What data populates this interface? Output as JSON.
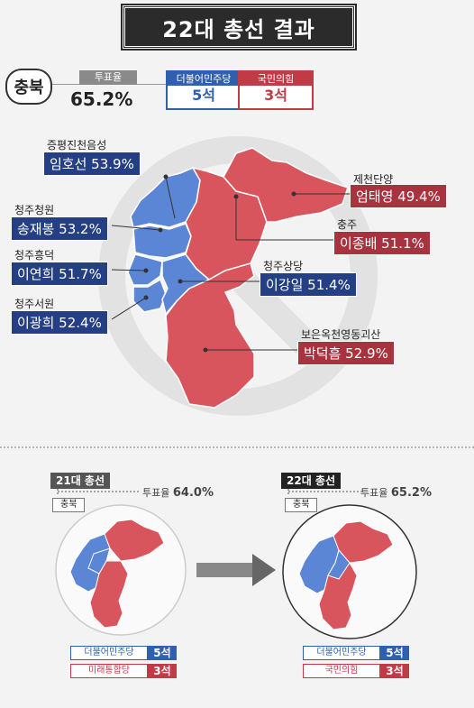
{
  "title": "22대 총선 결과",
  "region": "충북",
  "turnout_label": "투표율",
  "turnout_value": "65.2%",
  "parties": [
    {
      "name": "더불어민주당",
      "seats": "5석",
      "color": "#2f5fae"
    },
    {
      "name": "국민의힘",
      "seats": "3석",
      "color": "#c23a45"
    }
  ],
  "districts": [
    {
      "name": "증평진천음성",
      "winner": "임호선 53.9%",
      "party": "dem"
    },
    {
      "name": "청주청원",
      "winner": "송재봉 53.2%",
      "party": "dem"
    },
    {
      "name": "청주흥덕",
      "winner": "이연희 51.7%",
      "party": "dem"
    },
    {
      "name": "청주서원",
      "winner": "이광희 52.4%",
      "party": "dem"
    },
    {
      "name": "제천단양",
      "winner": "엄태영 49.4%",
      "party": "ppp"
    },
    {
      "name": "충주",
      "winner": "이종배 51.1%",
      "party": "ppp"
    },
    {
      "name": "청주상당",
      "winner": "이강일 51.4%",
      "party": "dem"
    },
    {
      "name": "보은옥천영동괴산",
      "winner": "박덕흠 52.9%",
      "party": "ppp"
    }
  ],
  "comparison": {
    "left": {
      "election": "21대 총선",
      "turnout_label": "투표율",
      "turnout": "64.0%",
      "region": "충북",
      "legend": [
        {
          "name": "더불어민주당",
          "seats": "5석",
          "color": "#2f5fae"
        },
        {
          "name": "미래통합당",
          "seats": "3석",
          "color": "#c23a45"
        }
      ]
    },
    "right": {
      "election": "22대 총선",
      "turnout_label": "투표율",
      "turnout": "65.2%",
      "region": "충북",
      "legend": [
        {
          "name": "더불어민주당",
          "seats": "5석",
          "color": "#2f5fae"
        },
        {
          "name": "국민의힘",
          "seats": "3석",
          "color": "#c23a45"
        }
      ]
    }
  },
  "colors": {
    "blue": "#5b86d6",
    "red": "#d9555e",
    "blue_label": "#253f85",
    "red_label": "#a8333e"
  }
}
